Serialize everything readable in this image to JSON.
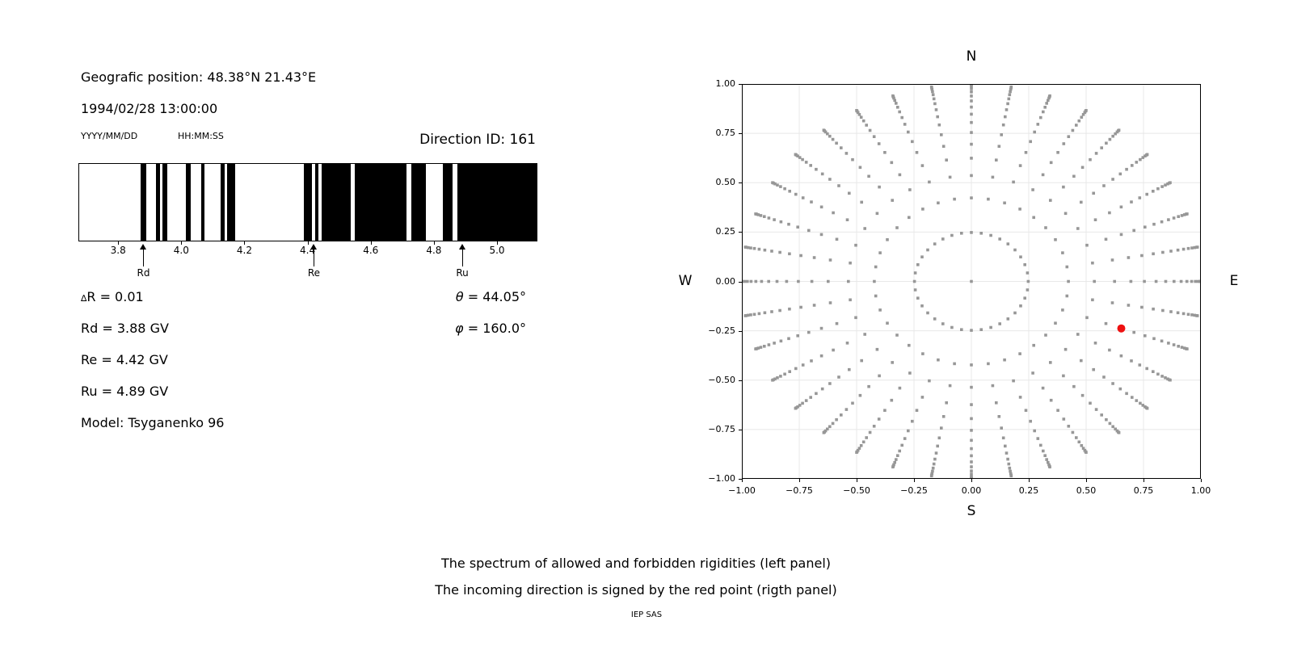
{
  "header": {
    "geo_position": "Geografic position: 48.38°N 21.43°E",
    "datetime": "1994/02/28 13:00:00",
    "date_format_label": "YYYY/MM/DD",
    "time_format_label": "HH:MM:SS",
    "direction_id": "Direction ID: 161"
  },
  "parameters": {
    "left": [
      {
        "sym": "∆",
        "sym_type": "delta",
        "rest": "R = 0.01"
      },
      {
        "sym": "",
        "sym_type": "",
        "rest": "Rd = 3.88 GV"
      },
      {
        "sym": "",
        "sym_type": "",
        "rest": "Re = 4.42 GV"
      },
      {
        "sym": "",
        "sym_type": "",
        "rest": "Ru = 4.89 GV"
      },
      {
        "sym": "",
        "sym_type": "",
        "rest": "Model: Tsyganenko 96"
      }
    ],
    "right": [
      {
        "sym": "θ",
        "sym_type": "greek",
        "rest": " = 44.05°"
      },
      {
        "sym": "φ",
        "sym_type": "greek",
        "rest": " = 160.0°"
      }
    ]
  },
  "caption": {
    "line1": "The spectrum of allowed and forbidden rigidities (left panel)",
    "line2": "The incoming direction is signed by the red point (rigth panel)",
    "credit": "IEP SAS"
  },
  "colors": {
    "bar": "#000000",
    "dot": "#979797",
    "red_point": "#ee1111",
    "gridline": "#e8e8e8",
    "spine": "#000000",
    "text": "#000000"
  },
  "chart_data": [
    {
      "type": "bar",
      "panel": "left",
      "xunit": "GV",
      "xlim": [
        3.674,
        5.128
      ],
      "xticks": [
        3.8,
        4.0,
        4.2,
        4.4,
        4.6,
        4.8,
        5.0
      ],
      "xtick_labels": [
        "3.8",
        "4.0",
        "4.2",
        "4.4",
        "4.6",
        "4.8",
        "5.0"
      ],
      "forbidden_intervals_gv": [
        [
          3.872,
          3.888
        ],
        [
          3.921,
          3.932
        ],
        [
          3.939,
          3.956
        ],
        [
          4.014,
          4.029
        ],
        [
          4.062,
          4.073
        ],
        [
          4.125,
          4.138
        ],
        [
          4.145,
          4.17
        ],
        [
          4.387,
          4.414
        ],
        [
          4.423,
          4.433
        ],
        [
          4.444,
          4.536
        ],
        [
          4.55,
          4.713
        ],
        [
          4.729,
          4.774
        ],
        [
          4.829,
          4.859
        ],
        [
          4.874,
          5.128
        ]
      ],
      "cutoff_markers": [
        {
          "label": "Rd",
          "gv": 3.88
        },
        {
          "label": "Re",
          "gv": 4.42
        },
        {
          "label": "Ru",
          "gv": 4.89
        }
      ]
    },
    {
      "type": "scatter",
      "panel": "right",
      "grid_on": true,
      "xlim": [
        -1,
        1
      ],
      "ylim": [
        -1,
        1
      ],
      "xticks": [
        -1,
        -0.75,
        -0.5,
        -0.25,
        0,
        0.25,
        0.5,
        0.75,
        1
      ],
      "xtick_labels": [
        "−1.00",
        "−0.75",
        "−0.50",
        "−0.25",
        "0.00",
        "0.25",
        "0.50",
        "0.75",
        "1.00"
      ],
      "yticks": [
        1,
        0.75,
        0.5,
        0.25,
        0,
        -0.25,
        -0.5,
        -0.75,
        -1
      ],
      "ytick_labels": [
        "1.00",
        "0.75",
        "0.50",
        "0.25",
        "0.00",
        "−0.25",
        "−0.50",
        "−0.75",
        "−1.00"
      ],
      "compass": {
        "top": "N",
        "bottom": "S",
        "left": "W",
        "right": "E"
      },
      "gray_points": {
        "azimuth_start_deg": 0,
        "azimuth_step_deg": 10,
        "azimuth_count": 36,
        "ring_radii": [
          0.248,
          0.423,
          0.536,
          0.624,
          0.695,
          0.754,
          0.805,
          0.847,
          0.883,
          0.914,
          0.939,
          0.96,
          0.976,
          0.988,
          0.996,
          1.0
        ],
        "center_point": true
      },
      "red_point": {
        "x": 0.653,
        "y": -0.238
      }
    }
  ]
}
